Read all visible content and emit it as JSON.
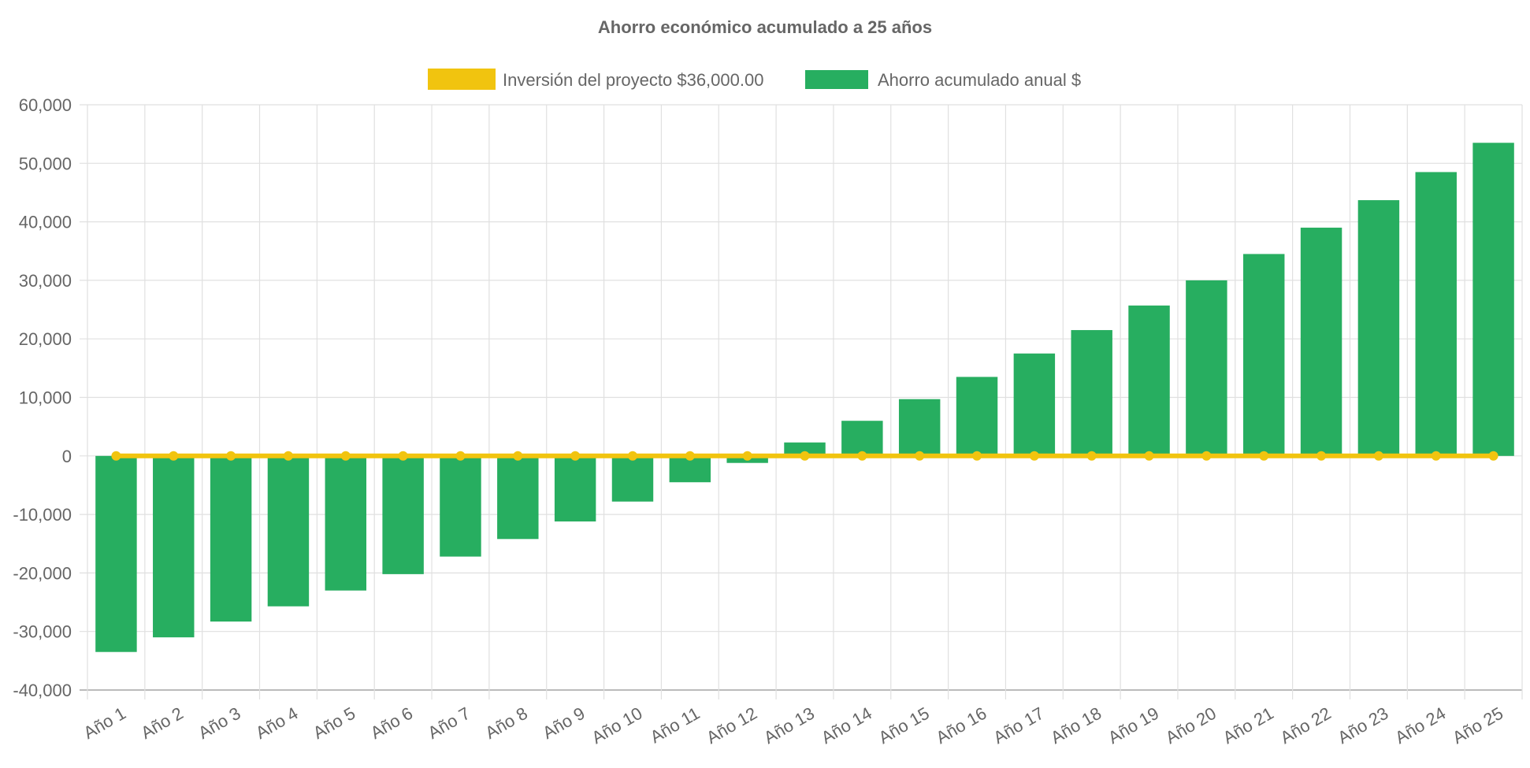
{
  "chart_data": {
    "type": "bar",
    "title": "Ahorro económico acumulado a 25 años",
    "xlabel": "",
    "ylabel": "",
    "ylim": [
      -40000,
      60000
    ],
    "yticks": [
      "60,000",
      "50,000",
      "40,000",
      "30,000",
      "20,000",
      "10,000",
      "0",
      "-10,000",
      "-20,000",
      "-30,000",
      "-40,000"
    ],
    "grid": true,
    "legend_position": "top",
    "categories": [
      "Año 1",
      "Año 2",
      "Año 3",
      "Año 4",
      "Año 5",
      "Año 6",
      "Año 7",
      "Año 8",
      "Año 9",
      "Año 10",
      "Año 11",
      "Año 12",
      "Año 13",
      "Año 14",
      "Año 15",
      "Año 16",
      "Año 17",
      "Año 18",
      "Año 19",
      "Año 20",
      "Año 21",
      "Año 22",
      "Año 23",
      "Año 24",
      "Año 25"
    ],
    "series": [
      {
        "name": "Inversión del proyecto $36,000.00",
        "type": "line",
        "color": "#f1c40f",
        "values": [
          0,
          0,
          0,
          0,
          0,
          0,
          0,
          0,
          0,
          0,
          0,
          0,
          0,
          0,
          0,
          0,
          0,
          0,
          0,
          0,
          0,
          0,
          0,
          0,
          0
        ]
      },
      {
        "name": "Ahorro acumulado anual $",
        "type": "bar",
        "color": "#27ae60",
        "values": [
          -33500,
          -31000,
          -28300,
          -25700,
          -23000,
          -20200,
          -17200,
          -14200,
          -11200,
          -7800,
          -4500,
          -1200,
          2300,
          6000,
          9700,
          13500,
          17500,
          21500,
          25700,
          30000,
          34500,
          39000,
          43700,
          48500,
          53500
        ]
      }
    ]
  }
}
